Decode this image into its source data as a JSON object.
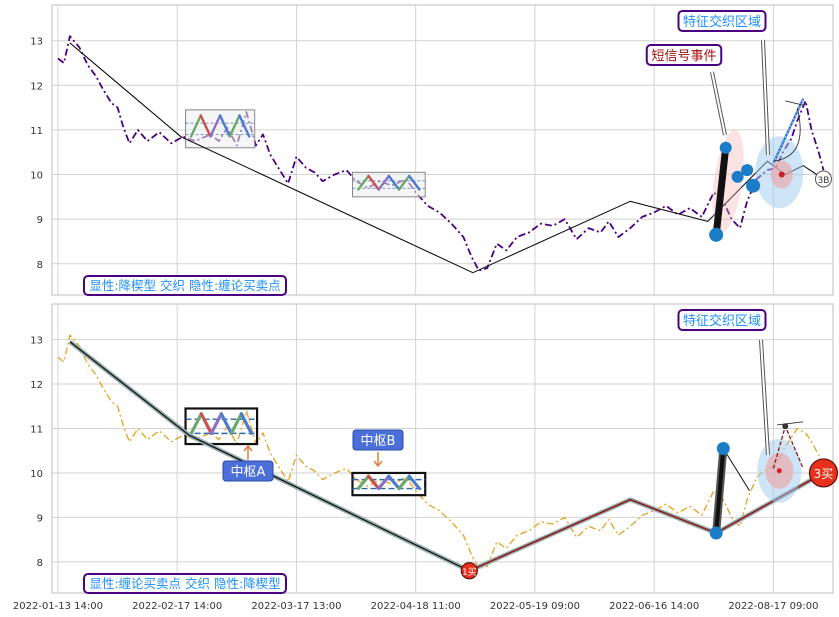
{
  "chart_data": [
    {
      "type": "line",
      "panel": "top",
      "annotation_label": "显性:降楔型 交织 隐性:缠论买卖点",
      "ylim": [
        7.3,
        13.8
      ],
      "yticks": [
        "8",
        "9",
        "10",
        "11",
        "12",
        "13"
      ],
      "xlim": [
        -0.05,
        6.5
      ],
      "xticks": [
        "2022-01-13 14:00",
        "2022-02-17 14:00",
        "2022-03-17 13:00",
        "2022-04-18 11:00",
        "2022-05-19 09:00",
        "2022-06-16 14:00",
        "2022-08-17 09:00"
      ],
      "grid": true,
      "price_color": "#4b0082",
      "price_series": [
        [
          0.0,
          12.6
        ],
        [
          0.05,
          12.5
        ],
        [
          0.1,
          13.1
        ],
        [
          0.18,
          12.85
        ],
        [
          0.25,
          12.45
        ],
        [
          0.32,
          12.2
        ],
        [
          0.38,
          11.9
        ],
        [
          0.45,
          11.6
        ],
        [
          0.5,
          11.5
        ],
        [
          0.55,
          11.05
        ],
        [
          0.6,
          10.7
        ],
        [
          0.67,
          11.0
        ],
        [
          0.75,
          10.75
        ],
        [
          0.85,
          10.95
        ],
        [
          0.95,
          10.7
        ],
        [
          1.05,
          10.85
        ],
        [
          1.15,
          10.75
        ],
        [
          1.28,
          10.9
        ],
        [
          1.35,
          10.75
        ],
        [
          1.42,
          11.05
        ],
        [
          1.5,
          10.65
        ],
        [
          1.58,
          11.4
        ],
        [
          1.66,
          10.65
        ],
        [
          1.72,
          10.9
        ],
        [
          1.78,
          10.45
        ],
        [
          1.86,
          10.1
        ],
        [
          1.93,
          9.8
        ],
        [
          2.0,
          10.4
        ],
        [
          2.08,
          10.15
        ],
        [
          2.15,
          10.05
        ],
        [
          2.22,
          9.85
        ],
        [
          2.32,
          10.0
        ],
        [
          2.42,
          10.1
        ],
        [
          2.5,
          9.85
        ],
        [
          2.6,
          9.7
        ],
        [
          2.7,
          9.85
        ],
        [
          2.8,
          9.75
        ],
        [
          2.92,
          9.9
        ],
        [
          3.0,
          9.6
        ],
        [
          3.1,
          9.3
        ],
        [
          3.2,
          9.15
        ],
        [
          3.3,
          8.9
        ],
        [
          3.4,
          8.6
        ],
        [
          3.47,
          8.15
        ],
        [
          3.53,
          7.85
        ],
        [
          3.6,
          7.9
        ],
        [
          3.68,
          8.45
        ],
        [
          3.76,
          8.3
        ],
        [
          3.85,
          8.6
        ],
        [
          3.95,
          8.7
        ],
        [
          4.05,
          8.9
        ],
        [
          4.15,
          8.85
        ],
        [
          4.25,
          9.0
        ],
        [
          4.35,
          8.55
        ],
        [
          4.45,
          8.8
        ],
        [
          4.55,
          8.7
        ],
        [
          4.62,
          8.95
        ],
        [
          4.7,
          8.6
        ],
        [
          4.8,
          8.8
        ],
        [
          4.9,
          9.05
        ],
        [
          5.0,
          9.15
        ],
        [
          5.1,
          9.3
        ],
        [
          5.2,
          9.1
        ],
        [
          5.3,
          9.25
        ],
        [
          5.4,
          9.05
        ],
        [
          5.5,
          9.6
        ],
        [
          5.58,
          9.4
        ],
        [
          5.65,
          9.0
        ],
        [
          5.72,
          8.8
        ],
        [
          5.78,
          9.4
        ],
        [
          5.86,
          9.9
        ],
        [
          5.95,
          10.1
        ],
        [
          6.02,
          10.15
        ],
        [
          6.08,
          10.5
        ],
        [
          6.15,
          10.8
        ],
        [
          6.2,
          11.2
        ],
        [
          6.27,
          11.65
        ],
        [
          6.32,
          11.0
        ],
        [
          6.38,
          10.5
        ],
        [
          6.42,
          10.1
        ]
      ],
      "bi_series": [
        [
          0.1,
          12.95
        ],
        [
          1.03,
          10.85
        ],
        [
          3.48,
          7.8
        ],
        [
          4.8,
          9.4
        ],
        [
          5.45,
          8.95
        ],
        [
          5.95,
          10.3
        ],
        [
          6.1,
          10.0
        ],
        [
          6.25,
          10.2
        ],
        [
          6.42,
          9.9
        ]
      ],
      "pivots": [
        {
          "x0": 1.07,
          "x1": 1.65,
          "y0": 10.6,
          "y1": 11.45
        },
        {
          "x0": 2.47,
          "x1": 3.08,
          "y0": 9.5,
          "y1": 10.05
        }
      ],
      "events": [
        "短信号事件",
        "特征交织区域"
      ],
      "point_labels": [
        "3B"
      ]
    },
    {
      "type": "line",
      "panel": "bottom",
      "annotation_label": "显性:缠论买卖点 交织 隐性:降楔型",
      "ylim": [
        7.3,
        13.8
      ],
      "yticks": [
        "8",
        "9",
        "10",
        "11",
        "12",
        "13"
      ],
      "xlim": [
        -0.05,
        6.5
      ],
      "xticks": [
        "2022-01-13 14:00",
        "2022-02-17 14:00",
        "2022-03-17 13:00",
        "2022-04-18 11:00",
        "2022-05-19 09:00",
        "2022-06-16 14:00",
        "2022-08-17 09:00"
      ],
      "grid": true,
      "price_color": "#e8a020",
      "price_series": [
        [
          0.0,
          12.6
        ],
        [
          0.05,
          12.5
        ],
        [
          0.1,
          13.1
        ],
        [
          0.18,
          12.85
        ],
        [
          0.25,
          12.45
        ],
        [
          0.32,
          12.2
        ],
        [
          0.38,
          11.9
        ],
        [
          0.45,
          11.6
        ],
        [
          0.5,
          11.5
        ],
        [
          0.55,
          11.05
        ],
        [
          0.6,
          10.7
        ],
        [
          0.67,
          11.0
        ],
        [
          0.75,
          10.75
        ],
        [
          0.85,
          10.95
        ],
        [
          0.95,
          10.7
        ],
        [
          1.05,
          10.85
        ],
        [
          1.15,
          10.75
        ],
        [
          1.28,
          10.9
        ],
        [
          1.35,
          10.75
        ],
        [
          1.42,
          11.05
        ],
        [
          1.5,
          10.65
        ],
        [
          1.58,
          11.4
        ],
        [
          1.66,
          10.65
        ],
        [
          1.72,
          10.9
        ],
        [
          1.78,
          10.45
        ],
        [
          1.86,
          10.1
        ],
        [
          1.93,
          9.8
        ],
        [
          2.0,
          10.4
        ],
        [
          2.08,
          10.15
        ],
        [
          2.15,
          10.05
        ],
        [
          2.22,
          9.85
        ],
        [
          2.32,
          10.0
        ],
        [
          2.42,
          10.1
        ],
        [
          2.5,
          9.85
        ],
        [
          2.6,
          9.7
        ],
        [
          2.7,
          9.85
        ],
        [
          2.8,
          9.75
        ],
        [
          2.92,
          9.9
        ],
        [
          3.0,
          9.6
        ],
        [
          3.1,
          9.3
        ],
        [
          3.2,
          9.15
        ],
        [
          3.3,
          8.9
        ],
        [
          3.4,
          8.6
        ],
        [
          3.47,
          8.15
        ],
        [
          3.53,
          7.85
        ],
        [
          3.6,
          7.9
        ],
        [
          3.68,
          8.45
        ],
        [
          3.76,
          8.3
        ],
        [
          3.85,
          8.6
        ],
        [
          3.95,
          8.7
        ],
        [
          4.05,
          8.9
        ],
        [
          4.15,
          8.85
        ],
        [
          4.25,
          9.0
        ],
        [
          4.35,
          8.55
        ],
        [
          4.45,
          8.8
        ],
        [
          4.55,
          8.7
        ],
        [
          4.62,
          8.95
        ],
        [
          4.7,
          8.6
        ],
        [
          4.8,
          8.8
        ],
        [
          4.9,
          9.05
        ],
        [
          5.0,
          9.15
        ],
        [
          5.1,
          9.3
        ],
        [
          5.2,
          9.1
        ],
        [
          5.3,
          9.25
        ],
        [
          5.4,
          9.05
        ],
        [
          5.5,
          9.6
        ],
        [
          5.58,
          9.4
        ],
        [
          5.65,
          9.0
        ],
        [
          5.72,
          8.8
        ],
        [
          5.78,
          9.4
        ],
        [
          5.86,
          9.9
        ],
        [
          5.95,
          10.1
        ],
        [
          6.02,
          10.15
        ],
        [
          6.08,
          10.5
        ],
        [
          6.15,
          10.8
        ],
        [
          6.2,
          11.0
        ],
        [
          6.27,
          10.9
        ],
        [
          6.32,
          10.7
        ],
        [
          6.38,
          10.4
        ],
        [
          6.42,
          10.1
        ]
      ],
      "bi_series": [
        [
          0.1,
          12.95
        ],
        [
          1.1,
          10.85
        ],
        [
          3.45,
          7.8
        ],
        [
          4.8,
          9.4
        ],
        [
          5.52,
          8.65
        ],
        [
          6.42,
          10.0
        ]
      ],
      "pivots": [
        {
          "x0": 1.07,
          "x1": 1.67,
          "y0": 10.65,
          "y1": 11.45,
          "label": "中枢A"
        },
        {
          "x0": 2.47,
          "x1": 3.08,
          "y0": 9.5,
          "y1": 10.0,
          "label": "中枢B"
        }
      ],
      "events": [
        "特征交织区域"
      ],
      "point_labels": [
        "1买",
        "3买"
      ]
    }
  ],
  "colors": {
    "label_border": "#4b0082",
    "label_text": "#1e90ff",
    "event_text": "#a01010",
    "pivot_label_bg": "#4a6fd8",
    "buy_marker": "#e8301a",
    "bi_line_bottom": "#8b1a1a",
    "up_stroke": "#2e6fd0",
    "highlight_blue": "#1b7cc7"
  }
}
